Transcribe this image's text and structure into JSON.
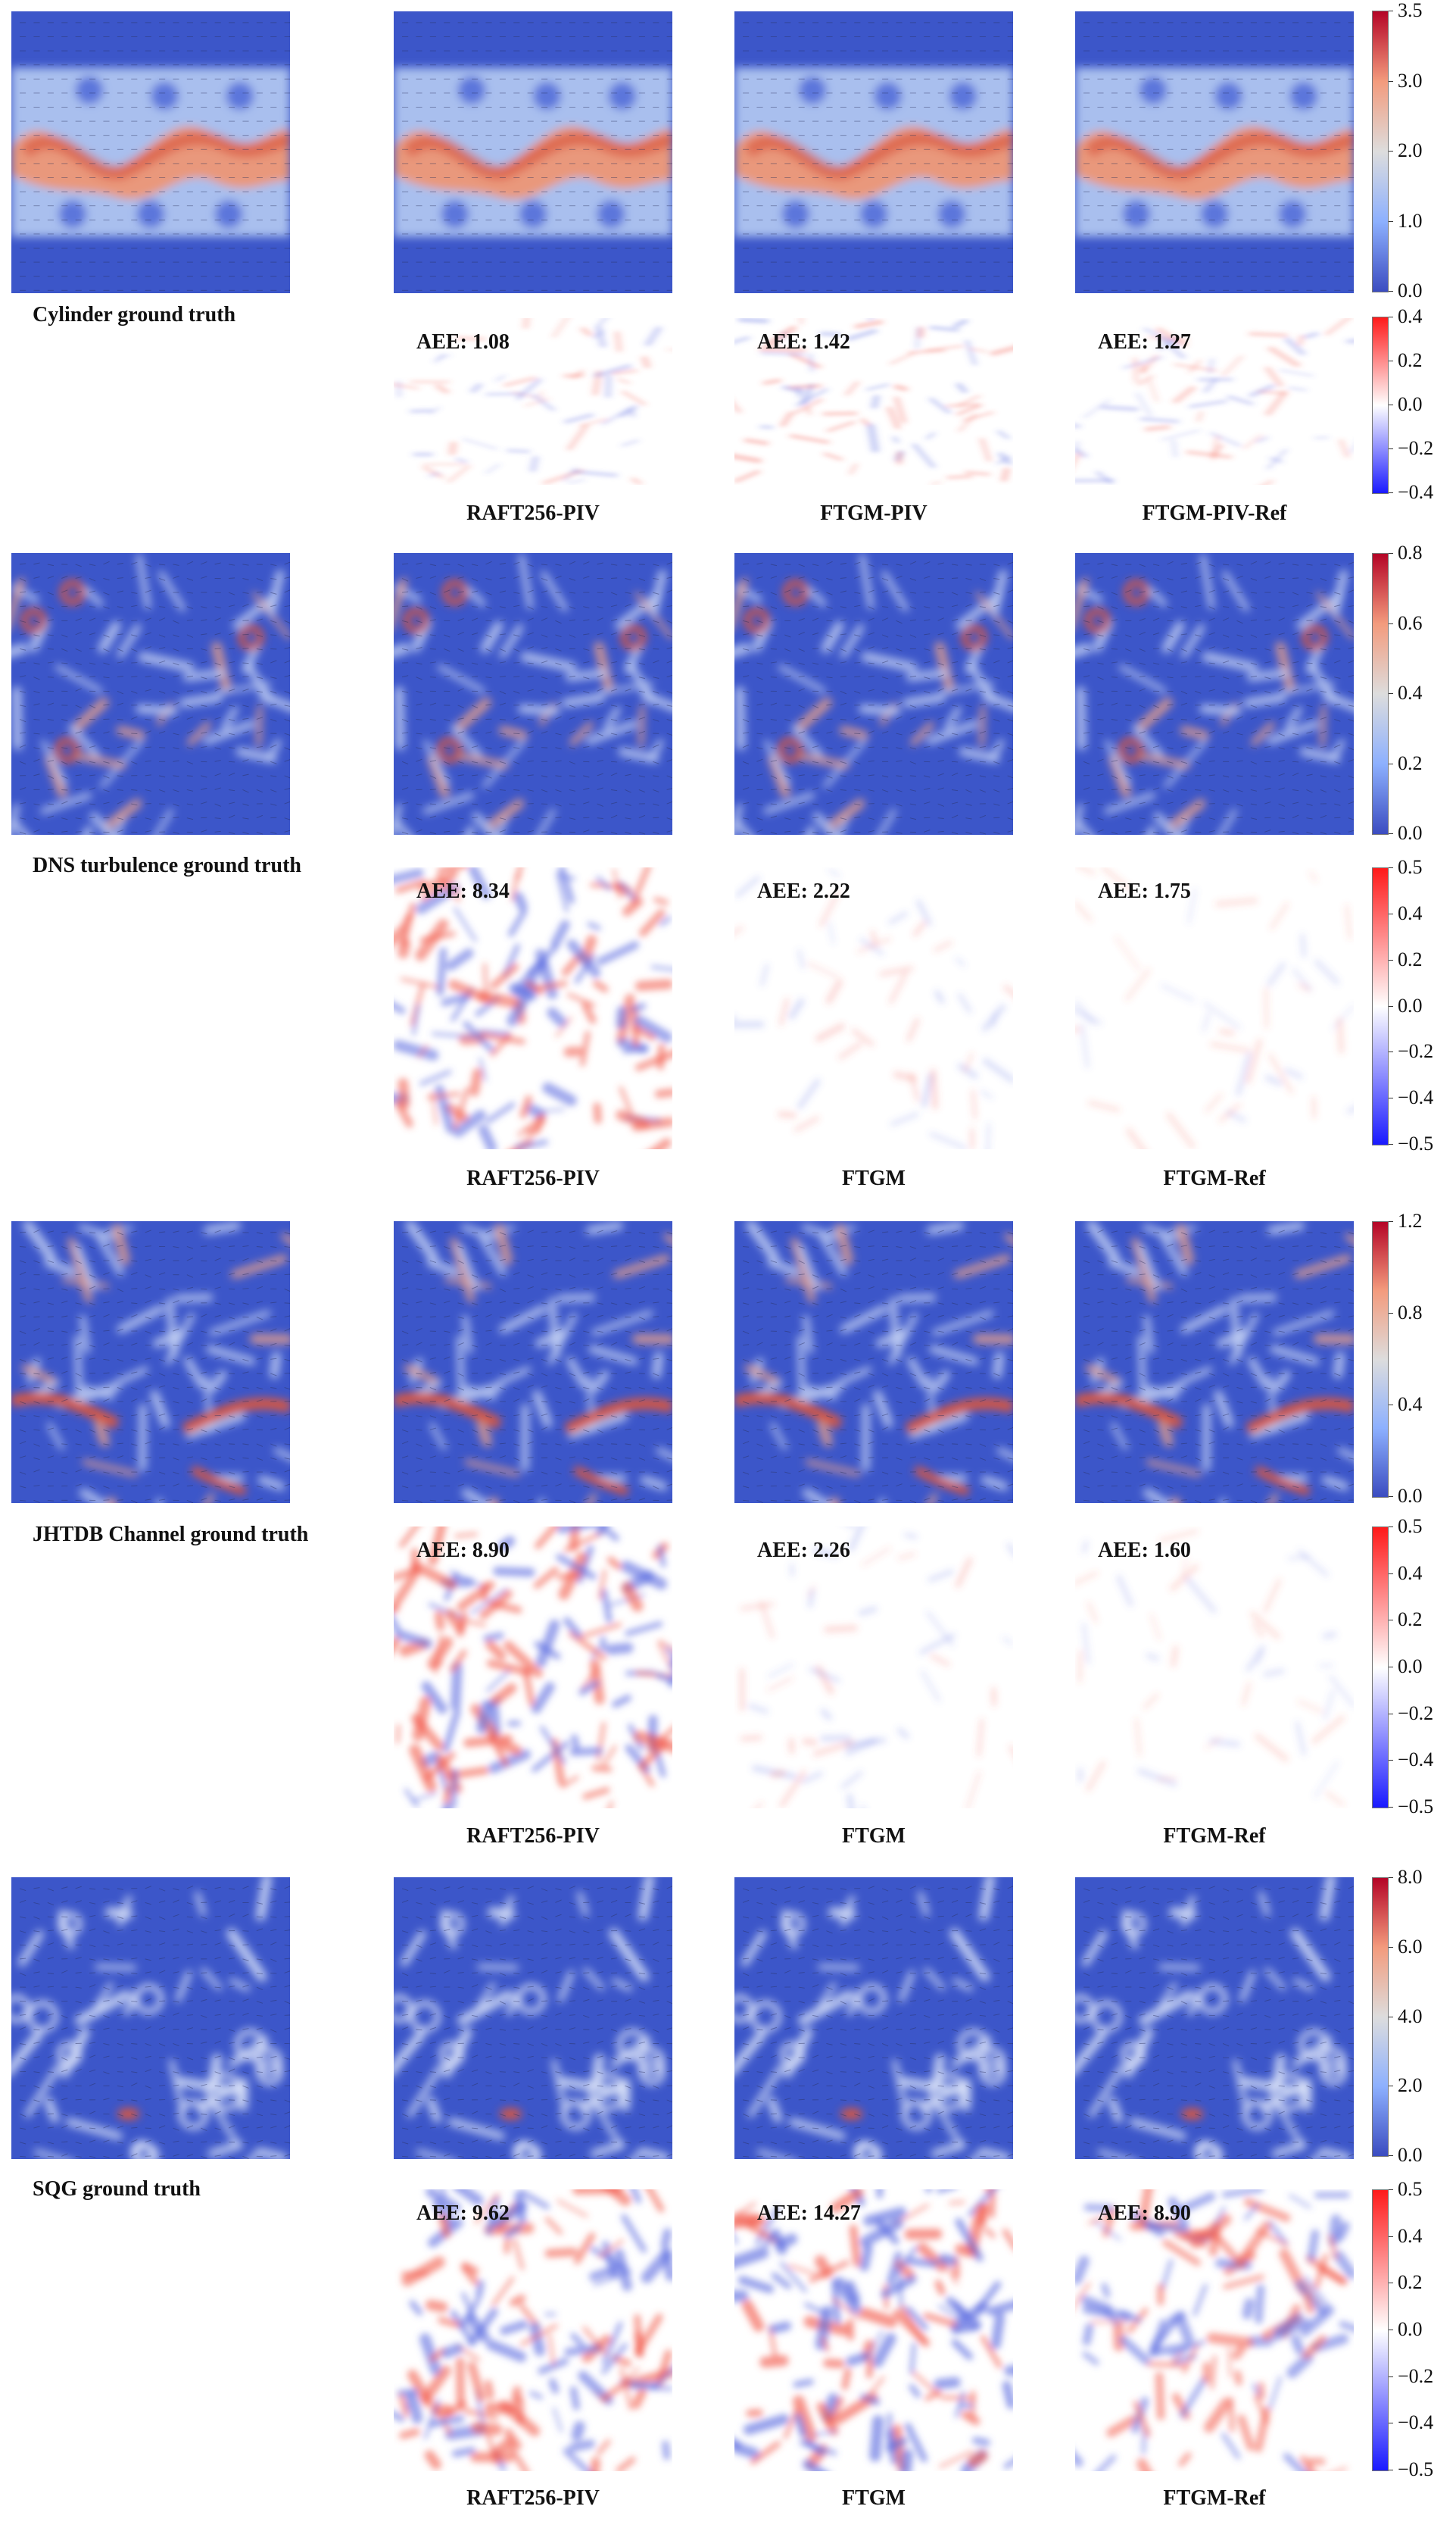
{
  "colors": {
    "field_background": "#3c56c9",
    "field_high": "#d8573f",
    "error_background": "#ffffff",
    "error_positive": "#f25a4a",
    "error_negative": "#5a6ae0"
  },
  "rows": [
    {
      "id": "cylinder",
      "ground_truth_caption": "Cylinder ground truth",
      "field_kind": "cylinder",
      "methods": [
        {
          "caption": "RAFT256-PIV",
          "aee": "AEE: 1.08"
        },
        {
          "caption": "FTGM-PIV",
          "aee": "AEE: 1.42"
        },
        {
          "caption": "FTGM-PIV-Ref",
          "aee": "AEE: 1.27"
        }
      ],
      "velocity_colorbar_ticks": [
        "3.5",
        "3.0",
        "2.0",
        "1.0",
        "0.0"
      ],
      "error_colorbar_ticks": [
        "0.4",
        "0.2",
        "0.0",
        "−0.2",
        "−0.4"
      ]
    },
    {
      "id": "dns",
      "ground_truth_caption": "DNS turbulence ground truth",
      "field_kind": "turbulence",
      "methods": [
        {
          "caption": "RAFT256-PIV",
          "aee": "AEE: 8.34"
        },
        {
          "caption": "FTGM",
          "aee": "AEE: 2.22"
        },
        {
          "caption": "FTGM-Ref",
          "aee": "AEE: 1.75"
        }
      ],
      "velocity_colorbar_ticks": [
        "0.8",
        "0.6",
        "0.4",
        "0.2",
        "0.0"
      ],
      "error_colorbar_ticks": [
        "0.5",
        "0.4",
        "0.2",
        "0.0",
        "−0.2",
        "−0.4",
        "−0.5"
      ]
    },
    {
      "id": "jhtdb",
      "ground_truth_caption": "JHTDB Channel ground truth",
      "field_kind": "channel",
      "methods": [
        {
          "caption": "RAFT256-PIV",
          "aee": "AEE: 8.90"
        },
        {
          "caption": "FTGM",
          "aee": "AEE: 2.26"
        },
        {
          "caption": "FTGM-Ref",
          "aee": "AEE: 1.60"
        }
      ],
      "velocity_colorbar_ticks": [
        "1.2",
        "0.8",
        "0.4",
        "0.0"
      ],
      "error_colorbar_ticks": [
        "0.5",
        "0.4",
        "0.2",
        "0.0",
        "−0.2",
        "−0.4",
        "−0.5"
      ]
    },
    {
      "id": "sqg",
      "ground_truth_caption": "SQG ground truth",
      "field_kind": "sqg",
      "methods": [
        {
          "caption": "RAFT256-PIV",
          "aee": "AEE: 9.62"
        },
        {
          "caption": "FTGM",
          "aee": "AEE: 14.27"
        },
        {
          "caption": "FTGM-Ref",
          "aee": "AEE: 8.90"
        }
      ],
      "velocity_colorbar_ticks": [
        "8.0",
        "6.0",
        "4.0",
        "2.0",
        "0.0"
      ],
      "error_colorbar_ticks": [
        "0.5",
        "0.4",
        "0.2",
        "0.0",
        "−0.2",
        "−0.4",
        "−0.5"
      ]
    }
  ]
}
